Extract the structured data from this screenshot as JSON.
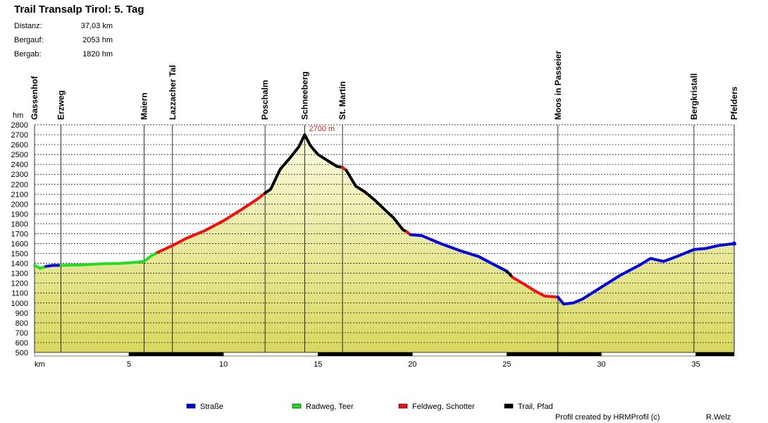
{
  "title": "Trail Transalp Tirol: 5. Tag",
  "stats": [
    {
      "label": "Distanz:",
      "value": "37,03 km"
    },
    {
      "label": "Bergauf:",
      "value": "2053 hm"
    },
    {
      "label": "Bergab:",
      "value": "1820 hm"
    }
  ],
  "footer": {
    "credit": "Profil created by HRMProfil (c)",
    "author": "R.Welz"
  },
  "colors": {
    "strasse": "#0000dd",
    "radweg": "#22dd22",
    "feldweg": "#ee1111",
    "trail": "#000000",
    "fill_top": "#fbfbe0",
    "fill_bottom": "#d8d860"
  },
  "chart_data": {
    "type": "area",
    "ylabel": "hm",
    "xlabel": "km",
    "ylim": [
      500,
      2800
    ],
    "xlim": [
      0,
      37.03
    ],
    "y_ticks": [
      2800,
      2700,
      2600,
      2500,
      2400,
      2300,
      2200,
      2100,
      2000,
      1900,
      1800,
      1700,
      1600,
      1500,
      1400,
      1300,
      1200,
      1100,
      1000,
      900,
      800,
      700,
      600,
      500
    ],
    "x_ticks": [
      5,
      10,
      15,
      20,
      25,
      30,
      35
    ],
    "grid": "horizontal dashed",
    "peak_annotation": {
      "x": 14.3,
      "y": 2700,
      "text": "2700 m"
    },
    "waypoints": [
      {
        "name": "Gassenhof",
        "x": 0
      },
      {
        "name": "Erzweg",
        "x": 1.4
      },
      {
        "name": "Maiern",
        "x": 5.8
      },
      {
        "name": "Lazzacher Tal",
        "x": 7.3
      },
      {
        "name": "Poschalm",
        "x": 12.2
      },
      {
        "name": "Schneeberg",
        "x": 14.3
      },
      {
        "name": "St. Martin",
        "x": 16.3
      },
      {
        "name": "Moos in Passeier",
        "x": 27.7
      },
      {
        "name": "Bergkristall",
        "x": 34.9
      },
      {
        "name": "Pfelders",
        "x": 37.03
      }
    ],
    "segments": [
      {
        "surface": "radweg",
        "points": [
          [
            0,
            1380
          ],
          [
            0.3,
            1350
          ],
          [
            0.6,
            1370
          ]
        ]
      },
      {
        "surface": "strasse",
        "points": [
          [
            0.6,
            1370
          ],
          [
            1.0,
            1380
          ],
          [
            1.4,
            1380
          ]
        ]
      },
      {
        "surface": "radweg",
        "points": [
          [
            1.4,
            1380
          ],
          [
            2.5,
            1385
          ],
          [
            3.5,
            1395
          ],
          [
            4.5,
            1400
          ],
          [
            5.3,
            1410
          ],
          [
            5.8,
            1420
          ],
          [
            6.2,
            1480
          ],
          [
            6.5,
            1510
          ]
        ]
      },
      {
        "surface": "feldweg",
        "points": [
          [
            6.5,
            1510
          ],
          [
            7.3,
            1580
          ],
          [
            8.0,
            1650
          ],
          [
            9.0,
            1730
          ],
          [
            10.0,
            1830
          ],
          [
            11.0,
            1950
          ],
          [
            11.8,
            2050
          ],
          [
            12.2,
            2110
          ]
        ]
      },
      {
        "surface": "trail",
        "points": [
          [
            12.2,
            2110
          ],
          [
            12.5,
            2150
          ],
          [
            13.0,
            2350
          ],
          [
            13.5,
            2460
          ],
          [
            14.0,
            2580
          ],
          [
            14.3,
            2700
          ],
          [
            14.6,
            2590
          ],
          [
            15.0,
            2500
          ],
          [
            15.5,
            2440
          ],
          [
            16.0,
            2380
          ],
          [
            16.3,
            2370
          ]
        ]
      },
      {
        "surface": "feldweg",
        "points": [
          [
            16.3,
            2370
          ],
          [
            16.5,
            2340
          ]
        ]
      },
      {
        "surface": "trail",
        "points": [
          [
            16.5,
            2340
          ],
          [
            17.0,
            2180
          ],
          [
            17.5,
            2120
          ],
          [
            18.0,
            2040
          ],
          [
            18.5,
            1950
          ],
          [
            19.0,
            1860
          ],
          [
            19.5,
            1740
          ],
          [
            19.7,
            1720
          ]
        ]
      },
      {
        "surface": "feldweg",
        "points": [
          [
            19.7,
            1720
          ],
          [
            19.9,
            1690
          ]
        ]
      },
      {
        "surface": "strasse",
        "points": [
          [
            19.9,
            1690
          ],
          [
            20.5,
            1680
          ],
          [
            21.5,
            1600
          ],
          [
            22.5,
            1530
          ],
          [
            23.5,
            1470
          ],
          [
            24.5,
            1370
          ],
          [
            25.0,
            1320
          ]
        ]
      },
      {
        "surface": "trail",
        "points": [
          [
            25.0,
            1320
          ],
          [
            25.3,
            1260
          ]
        ]
      },
      {
        "surface": "feldweg",
        "points": [
          [
            25.3,
            1260
          ],
          [
            26.0,
            1180
          ],
          [
            26.5,
            1120
          ],
          [
            27.0,
            1070
          ],
          [
            27.7,
            1060
          ]
        ]
      },
      {
        "surface": "strasse",
        "points": [
          [
            27.7,
            1060
          ],
          [
            28.0,
            990
          ],
          [
            28.5,
            1000
          ],
          [
            29.0,
            1040
          ],
          [
            30.0,
            1160
          ],
          [
            31.0,
            1280
          ],
          [
            32.0,
            1380
          ],
          [
            32.6,
            1450
          ],
          [
            33.3,
            1420
          ],
          [
            34.0,
            1470
          ],
          [
            34.9,
            1540
          ],
          [
            35.5,
            1550
          ],
          [
            36.2,
            1580
          ],
          [
            37.03,
            1600
          ]
        ]
      }
    ]
  },
  "legend": [
    {
      "key": "strasse",
      "label": "Straße"
    },
    {
      "key": "radweg",
      "label": "Radweg, Teer"
    },
    {
      "key": "feldweg",
      "label": "Feldweg, Schotter"
    },
    {
      "key": "trail",
      "label": "Trail, Pfad"
    }
  ]
}
